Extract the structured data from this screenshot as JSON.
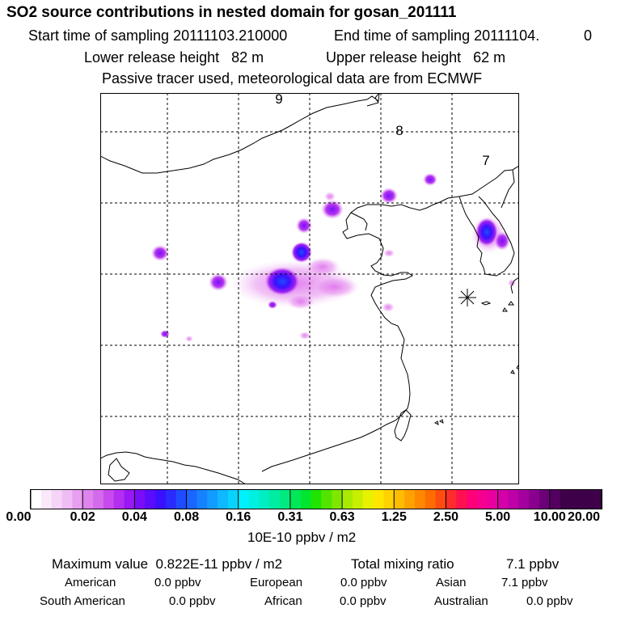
{
  "title": "SO2 source contributions in nested domain for gosan_201111",
  "sampling": {
    "start_label": "Start time of sampling",
    "start_value": "20111103.210000",
    "end_label": "End time of sampling",
    "end_value": "20111104.",
    "end_suffix": "0"
  },
  "release": {
    "lower_label": "Lower release height",
    "lower_value": "82 m",
    "upper_label": "Upper release height",
    "upper_value": "62 m"
  },
  "note": "Passive tracer used, meteorological data are from ECMWF",
  "map": {
    "back_trajectory_labels": [
      "9",
      "8",
      "7"
    ],
    "receptor": "gosan"
  },
  "colorbar": {
    "tick_labels": [
      "0.00",
      "0.02",
      "0.04",
      "0.08",
      "0.16",
      "0.31",
      "0.63",
      "1.25",
      "2.50",
      "5.00",
      "10.00",
      "20.00"
    ],
    "units": "10E-10 ppbv / m2",
    "colors": [
      "#ffffff",
      "#fbe8fb",
      "#f5d4f7",
      "#efbdf3",
      "#e89ff0",
      "#df84ee",
      "#d46bec",
      "#c84aef",
      "#b42ef2",
      "#9a18f5",
      "#7a0cf8",
      "#5a0cfb",
      "#3a10ff",
      "#2a2cff",
      "#1f4cff",
      "#1b66ff",
      "#1782ff",
      "#139cff",
      "#0fb8ff",
      "#0ad2ff",
      "#00f2ff",
      "#00f0e0",
      "#00eec0",
      "#00eca0",
      "#00ea80",
      "#00e858",
      "#00e630",
      "#20e400",
      "#52e400",
      "#80e600",
      "#a8ea00",
      "#c8ee00",
      "#e8f200",
      "#ffe600",
      "#ffd200",
      "#ffbc00",
      "#ffa200",
      "#ff8800",
      "#ff6c00",
      "#ff4c10",
      "#ff2c2c",
      "#ff1050",
      "#ff0078",
      "#f60090",
      "#e800a0",
      "#d400a8",
      "#be00a8",
      "#a400a0",
      "#8a008e",
      "#6c0078",
      "#540060",
      "#3e0048"
    ]
  },
  "stats": {
    "maximum_label": "Maximum value",
    "maximum_value": "0.822E-11 ppbv / m2",
    "total_label": "Total mixing ratio",
    "total_value": "7.1 ppbv"
  },
  "regions": [
    {
      "name": "American",
      "value": "0.0 ppbv"
    },
    {
      "name": "European",
      "value": "0.0 ppbv"
    },
    {
      "name": "Asian",
      "value": "7.1 ppbv"
    },
    {
      "name": "South American",
      "value": "0.0 ppbv"
    },
    {
      "name": "African",
      "value": "0.0 ppbv"
    },
    {
      "name": "Australian",
      "value": "0.0 ppbv"
    }
  ]
}
